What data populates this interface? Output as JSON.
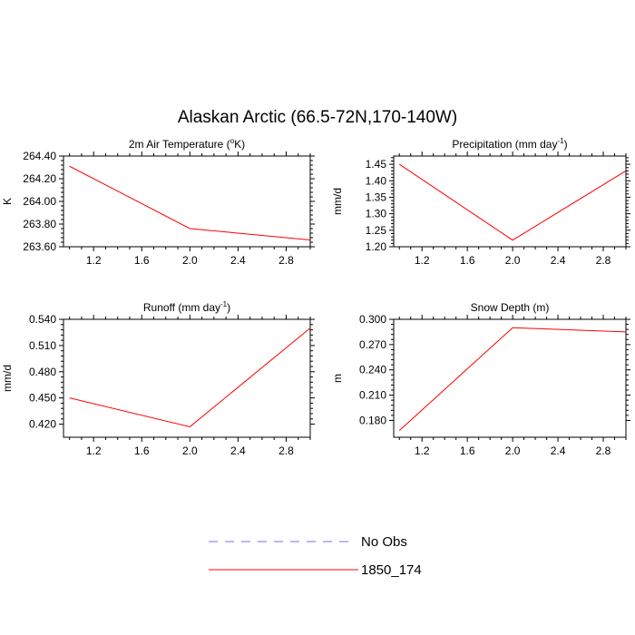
{
  "figure": {
    "title": "Alaskan Arctic (66.5-72N,170-140W)"
  },
  "legend": {
    "items": [
      {
        "label": "No Obs",
        "color": "#6f6fff",
        "style": "dashed"
      },
      {
        "label": "1850_174",
        "color": "#ff0000",
        "style": "solid"
      }
    ]
  },
  "chart_data": [
    {
      "type": "line",
      "title": "2m Air Temperature (°K)",
      "title_parts": [
        "2m Air Temperature (",
        "o",
        "K)"
      ],
      "ylabel": "K",
      "xlim": [
        0.95,
        3.0
      ],
      "ylim": [
        263.6,
        264.4
      ],
      "xticks": [
        "1.2",
        "1.6",
        "2.0",
        "2.4",
        "2.8"
      ],
      "yticks": [
        "263.60",
        "263.80",
        "264.00",
        "264.20",
        "264.40"
      ],
      "series": [
        {
          "name": "1850_174",
          "x": [
            1,
            2,
            3
          ],
          "y": [
            264.31,
            263.76,
            263.66
          ]
        }
      ]
    },
    {
      "type": "line",
      "title": "Precipitation (mm day-1)",
      "title_parts": [
        "Precipitation (mm day",
        "-1",
        ")"
      ],
      "ylabel": "mm/d",
      "xlim": [
        0.95,
        3.0
      ],
      "ylim": [
        1.2,
        1.475
      ],
      "xticks": [
        "1.2",
        "1.6",
        "2.0",
        "2.4",
        "2.8"
      ],
      "yticks": [
        "1.20",
        "1.25",
        "1.30",
        "1.35",
        "1.40",
        "1.45"
      ],
      "series": [
        {
          "name": "1850_174",
          "x": [
            1,
            2,
            3
          ],
          "y": [
            1.45,
            1.22,
            1.43
          ]
        }
      ]
    },
    {
      "type": "line",
      "title": "Runoff (mm day-1)",
      "title_parts": [
        "Runoff (mm day",
        "-1",
        ")"
      ],
      "ylabel": "mm/d",
      "xlim": [
        0.95,
        3.0
      ],
      "ylim": [
        0.405,
        0.54
      ],
      "xticks": [
        "1.2",
        "1.6",
        "2.0",
        "2.4",
        "2.8"
      ],
      "yticks": [
        "0.420",
        "0.450",
        "0.480",
        "0.510",
        "0.540"
      ],
      "series": [
        {
          "name": "1850_174",
          "x": [
            1,
            2,
            3
          ],
          "y": [
            0.45,
            0.417,
            0.53
          ]
        }
      ]
    },
    {
      "type": "line",
      "title": "Snow Depth (m)",
      "title_parts": [
        "Snow Depth (m)",
        "",
        ""
      ],
      "ylabel": "m",
      "xlim": [
        0.95,
        3.0
      ],
      "ylim": [
        0.16,
        0.3
      ],
      "xticks": [
        "1.2",
        "1.6",
        "2.0",
        "2.4",
        "2.8"
      ],
      "yticks": [
        "0.180",
        "0.210",
        "0.240",
        "0.270",
        "0.300"
      ],
      "series": [
        {
          "name": "1850_174",
          "x": [
            1,
            2,
            3
          ],
          "y": [
            0.168,
            0.29,
            0.285
          ]
        }
      ]
    }
  ]
}
